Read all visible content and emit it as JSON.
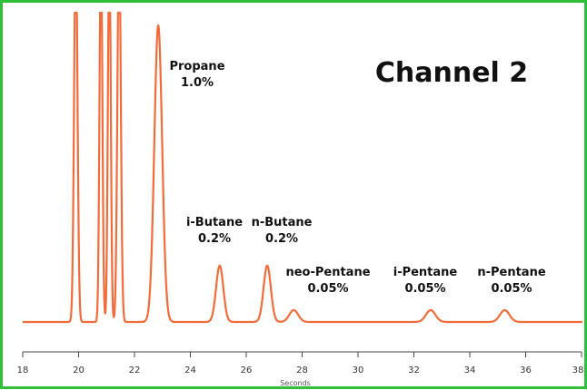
{
  "chart_data": {
    "type": "line",
    "title": "Channel 2",
    "xlabel": "Seconds",
    "ylabel": "",
    "xlim": [
      18,
      38
    ],
    "xticks": [
      "18",
      "20",
      "22",
      "24",
      "26",
      "28",
      "30",
      "32",
      "34",
      "36",
      "38"
    ],
    "grid": false,
    "line_color": "#f26b3a",
    "frame_color": "#2fbf3a",
    "peaks": [
      {
        "name": "",
        "x": 19.9,
        "height": 1.3
      },
      {
        "name": "",
        "x": 20.8,
        "height": 1.3
      },
      {
        "name": "",
        "x": 21.1,
        "height": 1.3
      },
      {
        "name": "",
        "x": 21.45,
        "height": 1.3
      },
      {
        "name": "Propane",
        "label": "1.0%",
        "x": 22.85,
        "height": 1.0
      },
      {
        "name": "i-Butane",
        "label": "0.2%",
        "x": 25.05,
        "height": 0.19
      },
      {
        "name": "n-Butane",
        "label": "0.2%",
        "x": 26.75,
        "height": 0.19
      },
      {
        "name": "neo-Pentane",
        "label": "0.05%",
        "x": 27.7,
        "height": 0.04
      },
      {
        "name": "i-Pentane",
        "label": "0.05%",
        "x": 32.6,
        "height": 0.04
      },
      {
        "name": "n-Pentane",
        "label": "0.05%",
        "x": 35.25,
        "height": 0.04
      }
    ]
  }
}
